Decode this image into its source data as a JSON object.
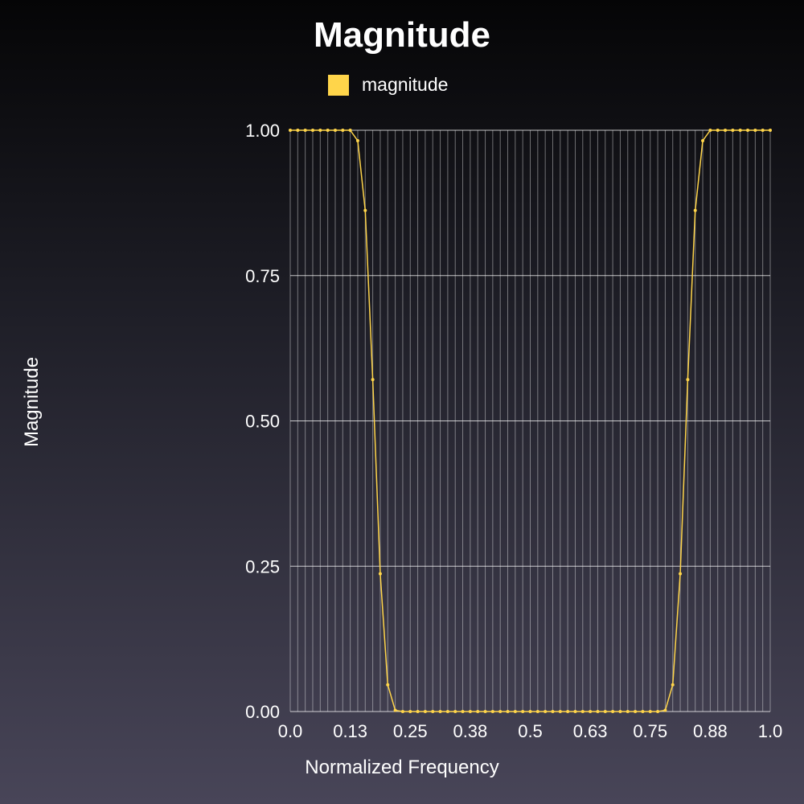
{
  "chart_data": {
    "type": "line",
    "title": "Magnitude",
    "xlabel": "Normalized Frequency",
    "ylabel": "Magnitude",
    "xlim": [
      0,
      1
    ],
    "ylim": [
      0,
      1
    ],
    "x_ticks": [
      0,
      0.125,
      0.25,
      0.375,
      0.5,
      0.625,
      0.75,
      0.875,
      1
    ],
    "x_tick_labels": [
      "0.0",
      "0.13",
      "0.25",
      "0.38",
      "0.5",
      "0.63",
      "0.75",
      "0.88",
      "1.0"
    ],
    "y_ticks": [
      0,
      0.25,
      0.5,
      0.75,
      1
    ],
    "y_tick_labels": [
      "0.00",
      "0.25",
      "0.50",
      "0.75",
      "1.00"
    ],
    "grid": true,
    "legend_position": "top-center",
    "series": [
      {
        "name": "magnitude",
        "color": "#ffd54a",
        "x": [
          0,
          0.015625,
          0.03125,
          0.046875,
          0.0625,
          0.078125,
          0.09375,
          0.109375,
          0.125,
          0.140625,
          0.15625,
          0.171875,
          0.1875,
          0.203125,
          0.21875,
          0.234375,
          0.25,
          0.265625,
          0.28125,
          0.296875,
          0.3125,
          0.328125,
          0.34375,
          0.359375,
          0.375,
          0.390625,
          0.40625,
          0.421875,
          0.4375,
          0.453125,
          0.46875,
          0.484375,
          0.5,
          0.515625,
          0.53125,
          0.546875,
          0.5625,
          0.578125,
          0.59375,
          0.609375,
          0.625,
          0.640625,
          0.65625,
          0.671875,
          0.6875,
          0.703125,
          0.71875,
          0.734375,
          0.75,
          0.765625,
          0.78125,
          0.796875,
          0.8125,
          0.828125,
          0.84375,
          0.859375,
          0.875,
          0.890625,
          0.90625,
          0.921875,
          0.9375,
          0.953125,
          0.96875,
          0.984375,
          1
        ],
        "values": [
          1.0,
          1.0,
          1.0,
          1.0,
          1.0,
          1.0,
          1.0,
          1.0,
          1.0,
          0.982,
          0.862,
          0.571,
          0.237,
          0.046,
          0.002,
          0.0,
          0.0,
          0.0,
          0.0,
          0.0,
          0.0,
          0.0,
          0.0,
          0.0,
          0.0,
          0.0,
          0.0,
          0.0,
          0.0,
          0.0,
          0.0,
          0.0,
          0.0,
          0.0,
          0.0,
          0.0,
          0.0,
          0.0,
          0.0,
          0.0,
          0.0,
          0.0,
          0.0,
          0.0,
          0.0,
          0.0,
          0.0,
          0.0,
          0.0,
          0.0,
          0.002,
          0.046,
          0.237,
          0.571,
          0.862,
          0.982,
          1.0,
          1.0,
          1.0,
          1.0,
          1.0,
          1.0,
          1.0,
          1.0,
          1.0
        ]
      }
    ]
  }
}
